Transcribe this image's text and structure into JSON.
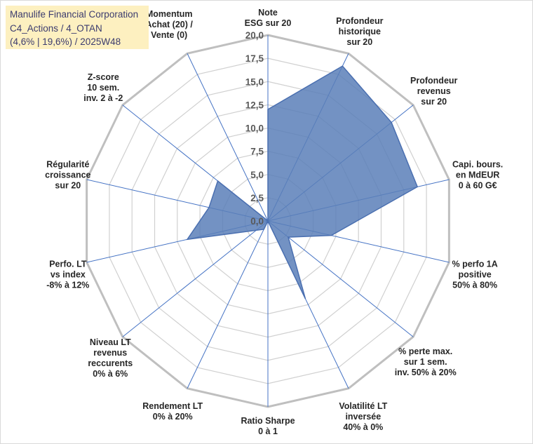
{
  "title_box": {
    "line1": "Manulife Financial Corporation",
    "line2": "C4_Actions / 4_OTAN",
    "line3": "(4,6% | 19,6%) / 2025W48"
  },
  "colors": {
    "fill": "#5b7fb8",
    "stroke": "#4a6fb0",
    "spokes": "#4472c4",
    "rings": "#d0d0d0",
    "outer_ring": "#bfbfbf",
    "title_bg": "#fdf0c0"
  },
  "chart_data": {
    "type": "radar",
    "rmin": 0,
    "rmax": 20,
    "ticks": [
      "0,0",
      "2,5",
      "5,0",
      "7,5",
      "10,0",
      "12,5",
      "15,0",
      "17,5",
      "20,0"
    ],
    "tick_values": [
      0,
      2.5,
      5,
      7.5,
      10,
      12.5,
      15,
      17.5,
      20
    ],
    "axes": [
      {
        "label": [
          "Note",
          "ESG sur 20"
        ],
        "value": 12.0
      },
      {
        "label": [
          "Profondeur",
          "historique",
          "sur 20"
        ],
        "value": 18.5
      },
      {
        "label": [
          "Profondeur",
          "revenus",
          "sur 20"
        ],
        "value": 17.0
      },
      {
        "label": [
          "Capi. bours.",
          "en MdEUR",
          "0 à 60 G€"
        ],
        "value": 16.5
      },
      {
        "label": [
          "% perfo 1A",
          "positive",
          "50% à 80%"
        ],
        "value": 7.0
      },
      {
        "label": [
          "% perte max.",
          "sur 1 sem.",
          "inv. 50% à 20%"
        ],
        "value": 2.8
      },
      {
        "label": [
          "Volatilité LT",
          "inversée",
          "40% à 0%"
        ],
        "value": 9.3
      },
      {
        "label": [
          "Ratio Sharpe",
          "0 à 1"
        ],
        "value": 0.0
      },
      {
        "label": [
          "Rendement LT",
          "0% à 20%"
        ],
        "value": 1.0
      },
      {
        "label": [
          "Niveau LT",
          "revenus",
          "reccurents",
          "0% à 6%"
        ],
        "value": 1.6
      },
      {
        "label": [
          "Perfo. LT",
          "vs index",
          "-8% à 12%"
        ],
        "value": 8.9
      },
      {
        "label": [
          "Régularité",
          "croissance",
          "sur 20"
        ],
        "value": 6.5
      },
      {
        "label": [
          "Z-score",
          "10 sem.",
          "inv. 2 à -2"
        ],
        "value": 6.9
      },
      {
        "label": [
          "Momentum",
          "Achat (20) /",
          "Vente (0)"
        ],
        "value": 0.0
      }
    ]
  }
}
